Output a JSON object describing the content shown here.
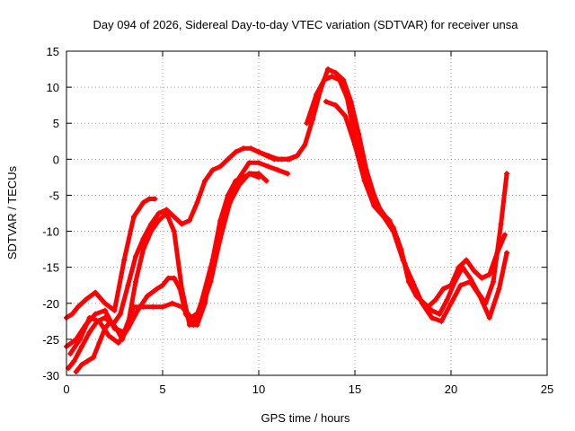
{
  "chart_data": {
    "type": "scatter",
    "title": "Day 094 of 2026, Sidereal Day-to-day VTEC variation (SDTVAR) for receiver unsa",
    "xlabel": "GPS time / hours",
    "ylabel": "SDTVAR / TECUs",
    "xlim": [
      0,
      25
    ],
    "ylim": [
      -30,
      15
    ],
    "xticks": [
      "0",
      "5",
      "10",
      "15",
      "20",
      "25"
    ],
    "yticks": [
      "-30",
      "-25",
      "-20",
      "-15",
      "-10",
      "-5",
      "0",
      "5",
      "10",
      "15"
    ],
    "grid": true,
    "marker": "+",
    "color": "#ff0000",
    "series": [
      {
        "name": "track-1",
        "x": [
          0.0,
          0.3,
          0.6,
          1.0,
          1.5,
          2.0,
          2.5,
          3.0,
          3.5,
          4.0,
          4.3,
          4.6
        ],
        "y": [
          -22.0,
          -21.5,
          -20.5,
          -19.5,
          -18.5,
          -20.0,
          -21.0,
          -14.0,
          -8.0,
          -6.0,
          -5.5,
          -5.5
        ]
      },
      {
        "name": "track-2",
        "x": [
          0.1,
          0.4,
          0.8,
          1.2,
          1.6,
          2.0,
          2.4,
          2.8,
          3.2,
          3.6,
          4.0,
          4.4,
          4.8,
          5.2,
          5.6,
          6.0,
          6.4,
          6.8,
          7.2,
          7.6,
          8.0,
          8.4,
          8.8,
          9.2,
          9.6,
          10.0,
          10.4,
          10.8,
          11.2,
          11.6,
          12.0
        ],
        "y": [
          -29.0,
          -28.0,
          -26.0,
          -24.0,
          -22.5,
          -22.0,
          -23.0,
          -21.5,
          -17.5,
          -13.5,
          -11.0,
          -9.0,
          -7.5,
          -7.0,
          -8.0,
          -9.0,
          -8.5,
          -6.0,
          -3.0,
          -1.5,
          -1.0,
          0.0,
          1.0,
          1.5,
          1.5,
          1.0,
          0.5,
          0.0,
          0.0,
          0.0,
          0.5
        ]
      },
      {
        "name": "track-3",
        "x": [
          0.0,
          0.5,
          1.0,
          1.5,
          2.0,
          2.5,
          3.0,
          3.5,
          4.0,
          4.5,
          5.0,
          5.5,
          6.0,
          6.5,
          7.0,
          7.5,
          8.0,
          8.5,
          9.0,
          9.5,
          10.0,
          10.5,
          11.0,
          11.5
        ],
        "y": [
          -26.0,
          -25.0,
          -23.0,
          -21.5,
          -21.0,
          -23.5,
          -24.0,
          -20.5,
          -20.5,
          -20.5,
          -20.5,
          -20.0,
          -20.5,
          -22.0,
          -21.0,
          -17.0,
          -11.0,
          -6.0,
          -2.5,
          -0.5,
          -0.5,
          -1.0,
          -1.5,
          -2.0
        ]
      },
      {
        "name": "track-4",
        "x": [
          0.2,
          0.7,
          1.2,
          1.7,
          2.2,
          2.7,
          3.2,
          3.7,
          4.2,
          4.7,
          5.0,
          5.3,
          5.6,
          5.9,
          6.2,
          6.6,
          7.0,
          7.5,
          8.0,
          8.5,
          9.0,
          9.5,
          10.0
        ],
        "y": [
          -27.0,
          -25.0,
          -22.0,
          -22.5,
          -24.5,
          -25.5,
          -23.5,
          -21.0,
          -19.0,
          -18.0,
          -17.5,
          -16.5,
          -16.5,
          -18.0,
          -21.5,
          -23.0,
          -20.0,
          -15.0,
          -10.0,
          -6.0,
          -3.5,
          -2.0,
          -2.5
        ]
      },
      {
        "name": "track-5",
        "x": [
          0.5,
          0.8,
          1.1,
          1.4,
          1.7,
          2.0,
          2.3,
          2.6,
          2.9,
          3.2,
          3.6,
          4.0,
          4.4,
          4.8,
          5.2,
          5.6,
          6.0,
          6.4,
          6.8,
          7.2,
          7.6,
          8.0,
          8.4,
          8.8,
          9.2,
          9.6,
          10.0,
          10.4
        ],
        "y": [
          -29.5,
          -28.5,
          -28.0,
          -27.5,
          -25.5,
          -23.5,
          -22.5,
          -23.5,
          -25.0,
          -23.0,
          -17.0,
          -12.5,
          -10.0,
          -8.5,
          -7.5,
          -10.0,
          -18.0,
          -23.0,
          -23.0,
          -20.0,
          -14.0,
          -8.5,
          -5.0,
          -3.0,
          -2.5,
          -2.0,
          -2.0,
          -3.0
        ]
      },
      {
        "name": "track-6",
        "x": [
          10.0,
          10.5,
          11.0,
          11.5,
          12.0,
          12.4,
          12.8,
          13.2,
          13.6,
          14.0,
          14.4,
          14.8,
          15.2,
          15.6,
          16.0,
          16.4,
          16.8,
          17.2,
          17.6,
          18.0,
          18.4,
          18.8,
          19.2,
          19.6,
          20.0,
          20.4,
          20.8,
          21.2,
          21.6,
          22.0,
          22.4,
          22.8
        ],
        "y": [
          1.0,
          0.5,
          0.0,
          0.0,
          0.5,
          2.0,
          5.5,
          9.5,
          12.5,
          12.0,
          11.0,
          8.0,
          3.5,
          -1.5,
          -5.0,
          -7.5,
          -8.5,
          -11.0,
          -14.5,
          -17.5,
          -19.5,
          -20.5,
          -19.5,
          -18.0,
          -17.5,
          -15.0,
          -14.0,
          -15.5,
          -16.5,
          -16.0,
          -13.0,
          -10.5
        ]
      },
      {
        "name": "track-7",
        "x": [
          12.5,
          13.0,
          13.4,
          13.8,
          14.2,
          14.6,
          15.0,
          15.4,
          15.8,
          16.2,
          16.6,
          17.0,
          17.4,
          17.8,
          18.2,
          18.6,
          19.0,
          19.4,
          19.8,
          20.2,
          20.6,
          21.0,
          21.4,
          21.8,
          22.2,
          22.6,
          22.9
        ],
        "y": [
          5.0,
          9.0,
          11.0,
          11.5,
          11.0,
          8.5,
          3.0,
          -1.0,
          -3.5,
          -6.5,
          -8.0,
          -9.5,
          -12.5,
          -17.0,
          -19.0,
          -20.0,
          -21.0,
          -21.5,
          -19.5,
          -17.0,
          -15.0,
          -16.5,
          -18.5,
          -20.0,
          -17.0,
          -9.0,
          -2.0
        ]
      },
      {
        "name": "track-8",
        "x": [
          13.5,
          14.0,
          14.5,
          15.0,
          15.5,
          16.0,
          16.5,
          17.0,
          17.5,
          18.0,
          18.5,
          19.0,
          19.5,
          20.0,
          20.5,
          21.0,
          21.5,
          22.0,
          22.5,
          22.9
        ],
        "y": [
          8.0,
          7.5,
          6.0,
          2.0,
          -3.0,
          -6.5,
          -8.0,
          -10.0,
          -14.0,
          -17.0,
          -20.0,
          -22.0,
          -22.5,
          -20.0,
          -17.5,
          -17.0,
          -19.0,
          -22.0,
          -18.0,
          -13.0
        ]
      }
    ]
  }
}
